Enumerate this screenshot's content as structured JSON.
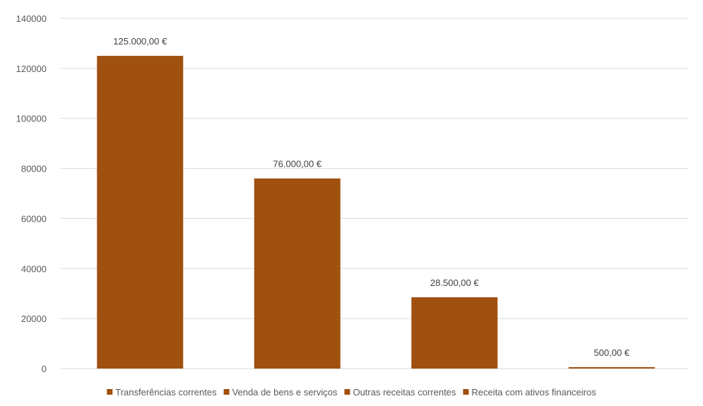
{
  "chart_data": {
    "type": "bar",
    "title": "",
    "xlabel": "",
    "ylabel": "",
    "ylim": [
      0,
      140000
    ],
    "yticks": [
      0,
      20000,
      40000,
      60000,
      80000,
      100000,
      120000,
      140000
    ],
    "ytick_labels": [
      "0",
      "20000",
      "40000",
      "60000",
      "80000",
      "100000",
      "120000",
      "140000"
    ],
    "grid": true,
    "legend_position": "bottom",
    "bar_color": "#A0500F",
    "categories": [
      "Transferências correntes",
      "Venda de bens e serviços",
      "Outras receitas correntes",
      "Receita com ativos financeiros"
    ],
    "values": [
      125000,
      76000,
      28500,
      500
    ],
    "data_labels": [
      "125.000,00 €",
      "76.000,00 €",
      "28.500,00 €",
      "500,00 €"
    ]
  }
}
